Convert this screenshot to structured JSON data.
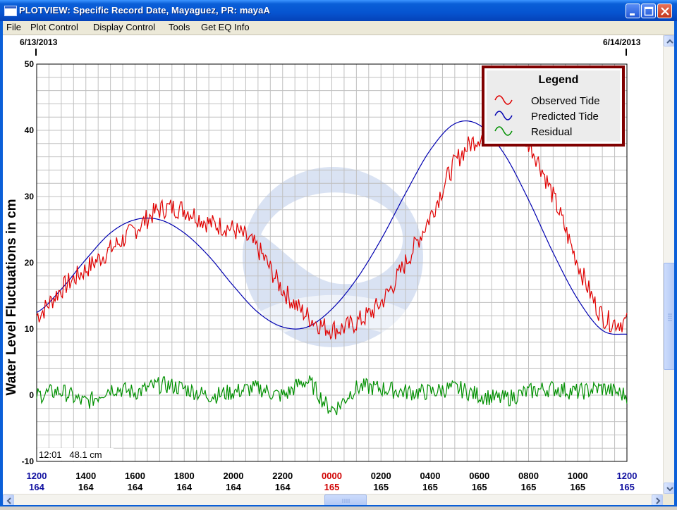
{
  "window": {
    "title": "PLOTVIEW: Specific Record Date, Mayaguez, PR: mayaA",
    "icon": "window-icon"
  },
  "menu": [
    "File",
    "Plot Control",
    "Display Control",
    "Tools",
    "Get EQ Info"
  ],
  "plot": {
    "date_start": "6/13/2013",
    "date_end": "6/14/2013",
    "cursor_readout": "12:01   48.1 cm",
    "watermark": "NOAA logo"
  },
  "legend": {
    "title": "Legend",
    "items": [
      {
        "label": "Observed Tide",
        "color": "#e00000"
      },
      {
        "label": "Predicted Tide",
        "color": "#0000b0"
      },
      {
        "label": "Residual",
        "color": "#009000"
      }
    ]
  },
  "chart_data": {
    "type": "line",
    "title": "",
    "ylabel": "Water Level Fluctuations in cm",
    "xlabel": "",
    "ylim": [
      -10,
      50
    ],
    "yticks": [
      -10,
      0,
      10,
      20,
      30,
      40,
      50
    ],
    "grid": true,
    "legend_position": "top-right",
    "x_ticks": [
      {
        "time": "1200",
        "day": "164",
        "time_color": "#1010a0",
        "day_color": "#1010a0"
      },
      {
        "time": "1400",
        "day": "164"
      },
      {
        "time": "1600",
        "day": "164"
      },
      {
        "time": "1800",
        "day": "164"
      },
      {
        "time": "2000",
        "day": "164"
      },
      {
        "time": "2200",
        "day": "164"
      },
      {
        "time": "0000",
        "day": "165",
        "time_color": "#d00000",
        "day_color": "#d00000"
      },
      {
        "time": "0200",
        "day": "165"
      },
      {
        "time": "0400",
        "day": "165"
      },
      {
        "time": "0600",
        "day": "165"
      },
      {
        "time": "0800",
        "day": "165"
      },
      {
        "time": "1000",
        "day": "165"
      },
      {
        "time": "1200",
        "day": "165",
        "time_color": "#1010a0",
        "day_color": "#1010a0"
      }
    ],
    "x_hours": [
      0,
      1,
      2,
      3,
      4,
      5,
      6,
      7,
      8,
      9,
      10,
      11,
      12,
      13,
      14,
      15,
      16,
      17,
      18,
      19,
      20,
      21,
      22,
      23,
      24
    ],
    "series": [
      {
        "name": "Observed Tide",
        "color": "#e00000",
        "values": [
          12,
          16,
          19,
          22,
          25,
          28,
          28,
          26,
          25,
          22,
          16,
          12,
          10,
          11,
          14,
          20,
          27,
          35,
          39,
          40,
          38,
          30,
          20,
          12,
          11
        ]
      },
      {
        "name": "Predicted Tide",
        "color": "#0000b0",
        "values": [
          12.5,
          16,
          20.5,
          24.5,
          26.5,
          26.5,
          24.5,
          21,
          16.5,
          12.5,
          10.3,
          10.3,
          13,
          17.5,
          23.5,
          30.5,
          37,
          41,
          40.8,
          36.5,
          29.5,
          21.5,
          14.5,
          9.8,
          9.2
        ]
      },
      {
        "name": "Residual",
        "color": "#009000",
        "values": [
          0,
          0.5,
          -1,
          1,
          0.5,
          1.5,
          1,
          0,
          0.5,
          1,
          0,
          2,
          -2,
          1,
          1,
          0.5,
          0.5,
          1,
          0,
          -0.5,
          0.5,
          1,
          0.5,
          1,
          0
        ]
      }
    ]
  }
}
